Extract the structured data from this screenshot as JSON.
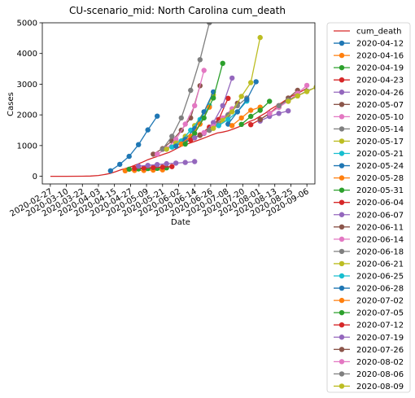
{
  "chart_data": {
    "type": "line",
    "title": "CU-scenario_mid: North Carolina cum_death",
    "xlabel": "Date",
    "ylabel": "Cases",
    "ylim": [
      -250,
      5000
    ],
    "yticks": [
      0,
      1000,
      2000,
      3000,
      4000,
      5000
    ],
    "xlim": [
      "2020-02-21",
      "2020-09-12"
    ],
    "xticks": [
      "2020-02-27",
      "2020-03-10",
      "2020-03-22",
      "2020-04-03",
      "2020-04-15",
      "2020-04-27",
      "2020-05-09",
      "2020-05-21",
      "2020-06-02",
      "2020-06-14",
      "2020-06-26",
      "2020-07-08",
      "2020-07-20",
      "2020-08-01",
      "2020-08-13",
      "2020-08-25",
      "2020-09-06"
    ],
    "grid": false,
    "legend_position": "outside-right",
    "observed": {
      "name": "cum_death",
      "color": "#d62728",
      "points": [
        [
          "2020-02-27",
          0
        ],
        [
          "2020-03-10",
          0
        ],
        [
          "2020-03-22",
          2
        ],
        [
          "2020-03-28",
          8
        ],
        [
          "2020-04-03",
          25
        ],
        [
          "2020-04-08",
          60
        ],
        [
          "2020-04-12",
          95
        ],
        [
          "2020-04-16",
          150
        ],
        [
          "2020-04-20",
          215
        ],
        [
          "2020-04-24",
          265
        ],
        [
          "2020-04-28",
          320
        ],
        [
          "2020-05-02",
          390
        ],
        [
          "2020-05-06",
          460
        ],
        [
          "2020-05-10",
          540
        ],
        [
          "2020-05-14",
          600
        ],
        [
          "2020-05-18",
          660
        ],
        [
          "2020-05-22",
          720
        ],
        [
          "2020-05-26",
          780
        ],
        [
          "2020-05-30",
          870
        ],
        [
          "2020-06-03",
          960
        ],
        [
          "2020-06-07",
          1030
        ],
        [
          "2020-06-11",
          1090
        ],
        [
          "2020-06-15",
          1150
        ],
        [
          "2020-06-19",
          1210
        ],
        [
          "2020-06-23",
          1280
        ],
        [
          "2020-06-27",
          1350
        ],
        [
          "2020-07-01",
          1410
        ],
        [
          "2020-07-05",
          1440
        ],
        [
          "2020-07-09",
          1480
        ],
        [
          "2020-07-13",
          1540
        ],
        [
          "2020-07-17",
          1610
        ],
        [
          "2020-07-21",
          1690
        ],
        [
          "2020-07-25",
          1780
        ],
        [
          "2020-07-29",
          1850
        ],
        [
          "2020-08-02",
          1960
        ],
        [
          "2020-08-06",
          2060
        ],
        [
          "2020-08-10",
          2190
        ],
        [
          "2020-08-14",
          2290
        ],
        [
          "2020-08-18",
          2390
        ],
        [
          "2020-08-22",
          2510
        ],
        [
          "2020-08-26",
          2620
        ],
        [
          "2020-08-30",
          2700
        ],
        [
          "2020-09-03",
          2790
        ],
        [
          "2020-09-06",
          2870
        ]
      ]
    },
    "series": [
      {
        "name": "2020-04-12",
        "color": "#1f77b4",
        "points": [
          [
            "2020-04-12",
            180
          ],
          [
            "2020-04-19",
            390
          ],
          [
            "2020-04-26",
            650
          ],
          [
            "2020-05-03",
            1030
          ],
          [
            "2020-05-10",
            1510
          ],
          [
            "2020-05-17",
            1960
          ]
        ]
      },
      {
        "name": "2020-04-16",
        "color": "#ff7f0e",
        "points": [
          [
            "2020-04-23",
            180
          ],
          [
            "2020-04-30",
            190
          ],
          [
            "2020-05-07",
            190
          ],
          [
            "2020-05-14",
            200
          ],
          [
            "2020-05-21",
            210
          ]
        ]
      },
      {
        "name": "2020-04-19",
        "color": "#2ca02c",
        "points": [
          [
            "2020-04-26",
            230
          ],
          [
            "2020-05-03",
            240
          ],
          [
            "2020-05-10",
            250
          ],
          [
            "2020-05-17",
            260
          ],
          [
            "2020-05-24",
            275
          ]
        ]
      },
      {
        "name": "2020-04-23",
        "color": "#d62728",
        "points": [
          [
            "2020-04-30",
            260
          ],
          [
            "2020-05-07",
            270
          ],
          [
            "2020-05-14",
            285
          ],
          [
            "2020-05-21",
            300
          ],
          [
            "2020-05-28",
            315
          ]
        ]
      },
      {
        "name": "2020-04-26",
        "color": "#9467bd",
        "points": [
          [
            "2020-05-03",
            330
          ],
          [
            "2020-05-10",
            355
          ],
          [
            "2020-05-17",
            380
          ],
          [
            "2020-05-24",
            410
          ],
          [
            "2020-05-31",
            430
          ],
          [
            "2020-06-07",
            450
          ],
          [
            "2020-06-14",
            480
          ]
        ]
      },
      {
        "name": "2020-05-07",
        "color": "#8c564b",
        "points": [
          [
            "2020-05-14",
            720
          ],
          [
            "2020-05-21",
            900
          ],
          [
            "2020-05-28",
            1150
          ],
          [
            "2020-06-04",
            1500
          ],
          [
            "2020-06-11",
            1900
          ],
          [
            "2020-06-18",
            2950
          ]
        ]
      },
      {
        "name": "2020-05-10",
        "color": "#e377c2",
        "points": [
          [
            "2020-05-17",
            720
          ],
          [
            "2020-05-24",
            900
          ],
          [
            "2020-05-31",
            1200
          ],
          [
            "2020-06-07",
            1700
          ],
          [
            "2020-06-14",
            2300
          ],
          [
            "2020-06-21",
            3450
          ]
        ]
      },
      {
        "name": "2020-05-14",
        "color": "#7f7f7f",
        "points": [
          [
            "2020-05-21",
            880
          ],
          [
            "2020-05-28",
            1300
          ],
          [
            "2020-06-04",
            1900
          ],
          [
            "2020-06-11",
            2800
          ],
          [
            "2020-06-18",
            3800
          ],
          [
            "2020-06-25",
            5000
          ]
        ]
      },
      {
        "name": "2020-05-17",
        "color": "#bcbd22",
        "points": [
          [
            "2020-05-24",
            880
          ],
          [
            "2020-05-31",
            1080
          ],
          [
            "2020-06-07",
            1300
          ],
          [
            "2020-06-14",
            1650
          ],
          [
            "2020-06-21",
            2100
          ],
          [
            "2020-06-28",
            2650
          ]
        ]
      },
      {
        "name": "2020-05-21",
        "color": "#17becf",
        "points": [
          [
            "2020-05-28",
            950
          ],
          [
            "2020-06-04",
            1150
          ],
          [
            "2020-06-11",
            1500
          ],
          [
            "2020-06-18",
            1850
          ],
          [
            "2020-06-25",
            2300
          ]
        ]
      },
      {
        "name": "2020-05-24",
        "color": "#1f77b4",
        "points": [
          [
            "2020-05-31",
            980
          ],
          [
            "2020-06-07",
            1200
          ],
          [
            "2020-06-14",
            1550
          ],
          [
            "2020-06-21",
            2100
          ],
          [
            "2020-06-28",
            2750
          ]
        ]
      },
      {
        "name": "2020-05-28",
        "color": "#ff7f0e",
        "points": [
          [
            "2020-06-04",
            1050
          ],
          [
            "2020-06-11",
            1300
          ],
          [
            "2020-06-18",
            1700
          ],
          [
            "2020-06-25",
            2250
          ]
        ]
      },
      {
        "name": "2020-05-31",
        "color": "#2ca02c",
        "points": [
          [
            "2020-06-07",
            1050
          ],
          [
            "2020-06-14",
            1400
          ],
          [
            "2020-06-21",
            1900
          ],
          [
            "2020-06-28",
            2550
          ],
          [
            "2020-07-05",
            3680
          ]
        ]
      },
      {
        "name": "2020-06-04",
        "color": "#d62728",
        "points": [
          [
            "2020-06-11",
            1180
          ],
          [
            "2020-06-18",
            1350
          ],
          [
            "2020-06-25",
            1600
          ],
          [
            "2020-07-02",
            1850
          ],
          [
            "2020-07-09",
            2540
          ]
        ]
      },
      {
        "name": "2020-06-07",
        "color": "#9467bd",
        "points": [
          [
            "2020-06-14",
            1250
          ],
          [
            "2020-06-21",
            1400
          ],
          [
            "2020-06-28",
            1750
          ],
          [
            "2020-07-05",
            2300
          ],
          [
            "2020-07-12",
            3200
          ]
        ]
      },
      {
        "name": "2020-06-11",
        "color": "#8c564b",
        "points": [
          [
            "2020-06-18",
            1330
          ],
          [
            "2020-06-25",
            1500
          ],
          [
            "2020-07-02",
            1750
          ],
          [
            "2020-07-09",
            2000
          ],
          [
            "2020-07-16",
            2380
          ]
        ]
      },
      {
        "name": "2020-06-14",
        "color": "#e377c2",
        "points": [
          [
            "2020-06-21",
            1420
          ],
          [
            "2020-06-28",
            1620
          ],
          [
            "2020-07-05",
            1900
          ],
          [
            "2020-07-12",
            2200
          ]
        ]
      },
      {
        "name": "2020-06-18",
        "color": "#7f7f7f",
        "points": [
          [
            "2020-06-25",
            1500
          ],
          [
            "2020-07-02",
            1700
          ],
          [
            "2020-07-09",
            2000
          ],
          [
            "2020-07-16",
            2300
          ],
          [
            "2020-07-23",
            2550
          ]
        ]
      },
      {
        "name": "2020-06-21",
        "color": "#bcbd22",
        "points": [
          [
            "2020-06-28",
            1560
          ],
          [
            "2020-07-05",
            1820
          ],
          [
            "2020-07-12",
            2100
          ],
          [
            "2020-07-19",
            2600
          ],
          [
            "2020-07-26",
            3050
          ],
          [
            "2020-08-02",
            4520
          ]
        ]
      },
      {
        "name": "2020-06-25",
        "color": "#17becf",
        "points": [
          [
            "2020-07-02",
            1650
          ],
          [
            "2020-07-09",
            1850
          ],
          [
            "2020-07-16",
            2100
          ],
          [
            "2020-07-23",
            2450
          ]
        ]
      },
      {
        "name": "2020-06-28",
        "color": "#1f77b4",
        "points": [
          [
            "2020-07-09",
            1700
          ],
          [
            "2020-07-16",
            2100
          ],
          [
            "2020-07-23",
            2500
          ],
          [
            "2020-07-30",
            3080
          ]
        ]
      },
      {
        "name": "2020-07-02",
        "color": "#ff7f0e",
        "points": [
          [
            "2020-07-12",
            1650
          ],
          [
            "2020-07-19",
            1900
          ],
          [
            "2020-07-26",
            2150
          ],
          [
            "2020-08-02",
            2250
          ]
        ]
      },
      {
        "name": "2020-07-05",
        "color": "#2ca02c",
        "points": [
          [
            "2020-07-19",
            1690
          ],
          [
            "2020-07-26",
            1950
          ],
          [
            "2020-08-02",
            2150
          ],
          [
            "2020-08-09",
            2440
          ]
        ]
      },
      {
        "name": "2020-07-12",
        "color": "#d62728",
        "points": [
          [
            "2020-07-26",
            1680
          ],
          [
            "2020-08-02",
            1850
          ],
          [
            "2020-08-09",
            2050
          ],
          [
            "2020-08-16",
            2300
          ]
        ]
      },
      {
        "name": "2020-07-19",
        "color": "#9467bd",
        "points": [
          [
            "2020-08-02",
            1800
          ],
          [
            "2020-08-09",
            1950
          ],
          [
            "2020-08-16",
            2050
          ],
          [
            "2020-08-23",
            2130
          ]
        ]
      },
      {
        "name": "2020-07-26",
        "color": "#8c564b",
        "points": [
          [
            "2020-08-02",
            1850
          ],
          [
            "2020-08-09",
            2050
          ],
          [
            "2020-08-16",
            2250
          ],
          [
            "2020-08-23",
            2550
          ],
          [
            "2020-08-30",
            2800
          ]
        ]
      },
      {
        "name": "2020-08-02",
        "color": "#e377c2",
        "points": [
          [
            "2020-08-09",
            2050
          ],
          [
            "2020-08-16",
            2250
          ],
          [
            "2020-08-23",
            2450
          ],
          [
            "2020-08-30",
            2700
          ],
          [
            "2020-09-06",
            2960
          ]
        ]
      },
      {
        "name": "2020-08-06",
        "color": "#7f7f7f",
        "points": [
          [
            "2020-08-16",
            2300
          ],
          [
            "2020-08-23",
            2480
          ],
          [
            "2020-08-30",
            2620
          ],
          [
            "2020-09-06",
            2780
          ],
          [
            "2020-09-13",
            2900
          ]
        ]
      },
      {
        "name": "2020-08-09",
        "color": "#bcbd22",
        "points": [
          [
            "2020-08-23",
            2440
          ],
          [
            "2020-08-30",
            2620
          ],
          [
            "2020-09-06",
            2760
          ],
          [
            "2020-09-13",
            2900
          ]
        ]
      }
    ]
  }
}
